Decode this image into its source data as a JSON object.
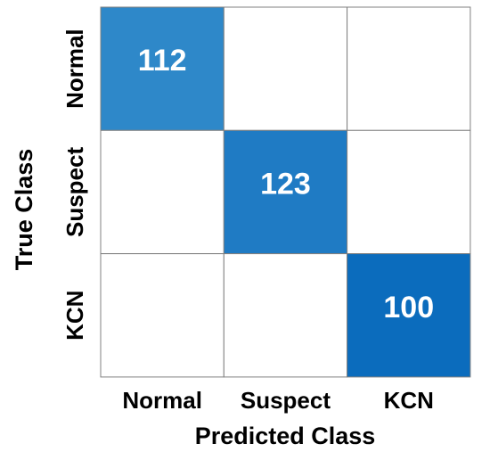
{
  "chart_data": {
    "type": "heatmap",
    "x_label": "Predicted Class",
    "y_label": "True Class",
    "x_categories": [
      "Normal",
      "Suspect",
      "KCN"
    ],
    "y_categories": [
      "Normal",
      "Suspect",
      "KCN"
    ],
    "values": [
      [
        112,
        0,
        0
      ],
      [
        0,
        123,
        0
      ],
      [
        0,
        0,
        100
      ]
    ],
    "colors": [
      [
        "#2e88c9",
        "#ffffff",
        "#ffffff"
      ],
      [
        "#ffffff",
        "#1f7bc4",
        "#ffffff"
      ],
      [
        "#ffffff",
        "#ffffff",
        "#0b6cbd"
      ]
    ]
  }
}
